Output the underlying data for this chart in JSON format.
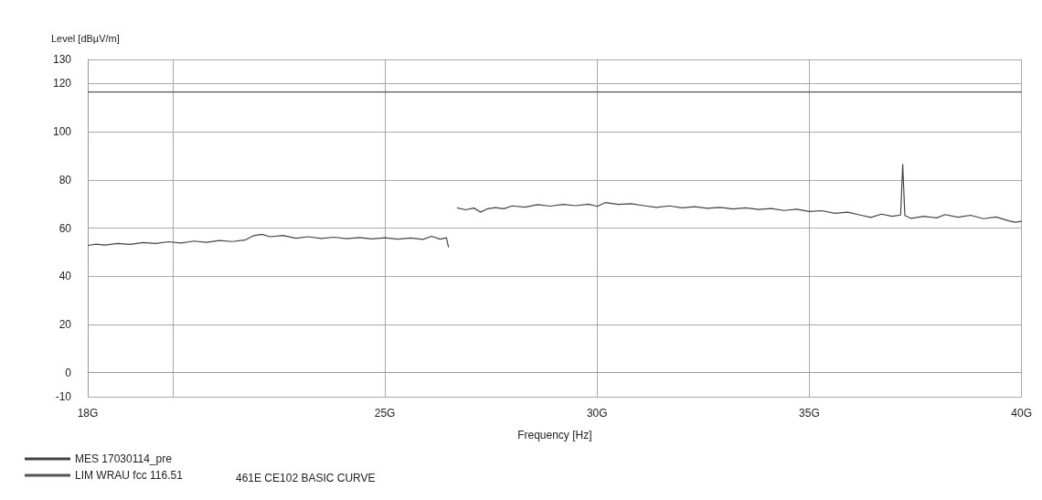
{
  "chart_data": {
    "type": "line",
    "xlabel": "Frequency [Hz]",
    "ylabel": "Level [dBµV/m]",
    "xlim": [
      18,
      40
    ],
    "xticks": [
      {
        "value": 18,
        "label": "18G"
      },
      {
        "value": 20,
        "label": null
      },
      {
        "value": 25,
        "label": "25G"
      },
      {
        "value": 30,
        "label": "30G"
      },
      {
        "value": 35,
        "label": "35G"
      },
      {
        "value": 40,
        "label": "40G"
      }
    ],
    "ylim": [
      -10,
      130
    ],
    "yticks": [
      -10,
      0,
      20,
      40,
      60,
      80,
      100,
      120,
      130
    ],
    "grid": true,
    "legend": "bottom left",
    "marker": "none",
    "line_style": "solid",
    "annotations": [
      "461E CE102 BASIC CURVE"
    ],
    "series": [
      {
        "name": "MES 17030114_pre",
        "color": "#444444",
        "x": [
          18.0,
          18.2,
          18.4,
          18.7,
          19.0,
          19.3,
          19.6,
          19.9,
          20.2,
          20.5,
          20.8,
          21.1,
          21.4,
          21.7,
          21.9,
          22.1,
          22.3,
          22.6,
          22.9,
          23.2,
          23.5,
          23.8,
          24.1,
          24.4,
          24.7,
          25.0,
          25.3,
          25.6,
          25.9,
          26.1,
          26.3,
          26.45,
          26.5,
          26.6,
          26.7,
          26.9,
          27.1,
          27.25,
          27.4,
          27.6,
          27.8,
          28.0,
          28.3,
          28.6,
          28.9,
          29.2,
          29.5,
          29.8,
          30.0,
          30.2,
          30.5,
          30.8,
          31.1,
          31.4,
          31.7,
          32.0,
          32.3,
          32.6,
          32.9,
          33.2,
          33.5,
          33.8,
          34.1,
          34.4,
          34.7,
          35.0,
          35.3,
          35.6,
          35.9,
          36.2,
          36.45,
          36.7,
          36.95,
          37.15,
          37.2,
          37.25,
          37.4,
          37.7,
          38.0,
          38.2,
          38.5,
          38.8,
          39.1,
          39.4,
          39.7,
          39.85,
          40.0
        ],
        "values": [
          52.8,
          53.3,
          52.9,
          53.6,
          53.2,
          54.0,
          53.6,
          54.3,
          53.8,
          54.6,
          54.1,
          54.8,
          54.4,
          55.0,
          56.8,
          57.4,
          56.4,
          56.9,
          55.8,
          56.4,
          55.7,
          56.2,
          55.6,
          56.1,
          55.5,
          56.0,
          55.4,
          55.9,
          55.3,
          56.6,
          55.4,
          56.0,
          52.0,
          null,
          68.4,
          67.6,
          68.3,
          66.6,
          67.9,
          68.5,
          68.0,
          69.2,
          68.7,
          69.7,
          69.1,
          69.8,
          69.3,
          69.9,
          69.0,
          70.6,
          69.8,
          70.1,
          69.3,
          68.6,
          69.2,
          68.4,
          68.9,
          68.2,
          68.6,
          67.9,
          68.4,
          67.7,
          68.1,
          67.3,
          67.8,
          66.9,
          67.2,
          66.1,
          66.6,
          65.4,
          64.4,
          65.8,
          64.9,
          65.4,
          86.4,
          65.2,
          64.0,
          64.9,
          64.2,
          65.6,
          64.5,
          65.3,
          63.9,
          64.6,
          63.0,
          62.4,
          62.8
        ]
      },
      {
        "name": "LIM WRAU fcc 116.51",
        "color": "#555555",
        "x": [
          18,
          40
        ],
        "values": [
          116.51,
          116.51
        ]
      }
    ]
  }
}
